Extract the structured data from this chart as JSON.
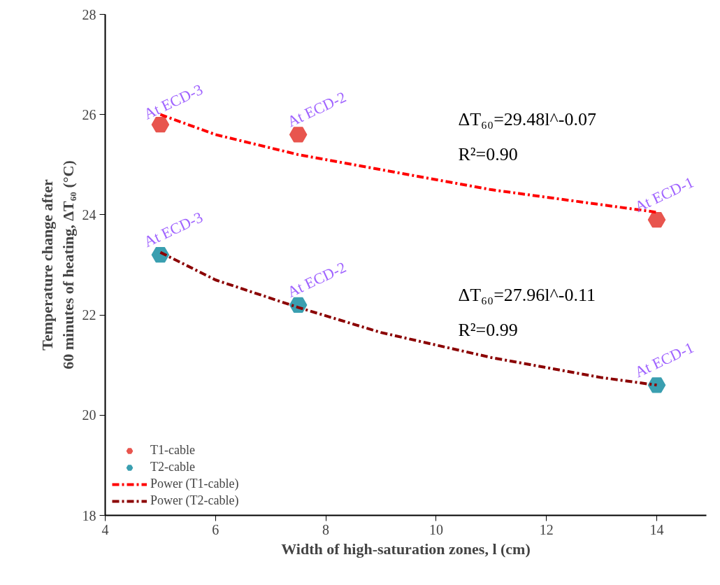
{
  "chart_data": {
    "type": "scatter",
    "xlabel": "Width of high-saturation zones, l (cm)",
    "ylabel": "Temperature change after\n60 minutes of heating, ΔT₆₀ (°C)",
    "xlim": [
      4,
      14.9
    ],
    "xticks": [
      4,
      6,
      8,
      10,
      12,
      14
    ],
    "ylim": [
      18,
      28
    ],
    "yticks": [
      18,
      20,
      22,
      24,
      26,
      28
    ],
    "grid": false,
    "legend": "bottom left",
    "series": [
      {
        "name": "T1-cable",
        "color": "#e8554e",
        "x": [
          5,
          7.5,
          14
        ],
        "values": [
          25.8,
          25.6,
          23.9
        ]
      },
      {
        "name": "T2-cable",
        "color": "#3a9fb0",
        "x": [
          5,
          7.5,
          14
        ],
        "values": [
          23.2,
          22.2,
          20.6
        ]
      },
      {
        "name": "Power (T1-cable)",
        "type": "line",
        "line_style": "dashed",
        "color": "#ff0000",
        "x": [
          5,
          6,
          7.5,
          9,
          10,
          11,
          12,
          13,
          14
        ],
        "values": [
          26.0,
          25.6,
          25.2,
          24.9,
          24.7,
          24.5,
          24.35,
          24.2,
          24.05
        ]
      },
      {
        "name": "Power (T2-cable)",
        "type": "line",
        "line_style": "dashed",
        "color": "#8b0000",
        "x": [
          5,
          6,
          7.5,
          9,
          10,
          11,
          12,
          13,
          14
        ],
        "values": [
          23.25,
          22.7,
          22.15,
          21.65,
          21.4,
          21.15,
          20.95,
          20.75,
          20.6
        ]
      }
    ],
    "annotations": [
      "At ECD-3",
      "At ECD-2",
      "At ECD-1",
      "At ECD-3",
      "At ECD-2",
      "At ECD-1",
      "ΔT₆₀=29.48l^-0.07",
      "R²=0.90",
      "ΔT₆₀=27.96l^-0.11",
      "R²=0.99"
    ]
  }
}
